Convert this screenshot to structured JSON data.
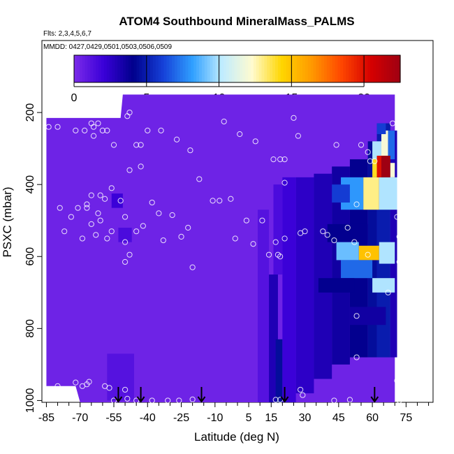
{
  "chart_data": {
    "type": "heatmap",
    "title": "ATOM4 Southbound MineralMass_PALMS",
    "subtitle_flights": "Flts: 2,3,4,5,6,7",
    "subtitle_dates": "MMDD: 0427,0429,0501,0503,0506,0509",
    "xlabel": "Latitude (deg N)",
    "ylabel": "PSXC (mbar)",
    "xlim": [
      -87,
      87
    ],
    "ylim": [
      1005,
      0
    ],
    "x_ticks": [
      -85,
      -70,
      -55,
      -40,
      -25,
      -10,
      5,
      15,
      30,
      45,
      60,
      75
    ],
    "x_tick_labels": [
      "-85",
      "-70",
      "-55",
      "-40",
      "-25",
      "-10",
      "5",
      "15",
      "30",
      "45",
      "60",
      "75"
    ],
    "x_minor_ticks": [
      -80,
      -75,
      -65,
      -60,
      -50,
      -45,
      -35,
      -30,
      -20,
      -15,
      -5,
      0,
      10,
      20,
      25,
      35,
      40,
      50,
      55,
      65,
      70,
      80,
      85
    ],
    "y_ticks": [
      200,
      400,
      600,
      800,
      1000
    ],
    "y_tick_labels": [
      "200",
      "400",
      "600",
      "800",
      "1000"
    ],
    "colorbar": {
      "min": 0,
      "max": 22.5,
      "ticks": [
        0,
        5,
        10,
        15,
        20
      ],
      "tick_labels": [
        "0",
        "5",
        "10",
        "15",
        "20"
      ],
      "colors": [
        "#7b2be9",
        "#3a00d8",
        "#00008c",
        "#1540d8",
        "#30a0ff",
        "#c0ecff",
        "#fffbd0",
        "#ffd600",
        "#ff9a00",
        "#ff4800",
        "#d60000",
        "#9e0012"
      ]
    },
    "background_value": 0.4,
    "coverage": [
      {
        "lat": -85,
        "ptop": 215,
        "pbot": 960
      },
      {
        "lat": -78,
        "ptop": 215,
        "pbot": 960
      },
      {
        "lat": -72,
        "ptop": 215,
        "pbot": 960
      },
      {
        "lat": -70,
        "ptop": 215,
        "pbot": 1005
      },
      {
        "lat": -52,
        "ptop": 215,
        "pbot": 1005
      },
      {
        "lat": -51,
        "ptop": 150,
        "pbot": 1005
      },
      {
        "lat": 70,
        "ptop": 150,
        "pbot": 1005
      }
    ],
    "cells": [
      {
        "lat0": -56,
        "lat1": -51,
        "p0": 425,
        "p1": 465,
        "value": 2
      },
      {
        "lat0": -53,
        "lat1": -47,
        "p0": 520,
        "p1": 560,
        "value": 1.5
      },
      {
        "lat0": -58,
        "lat1": -46,
        "p0": 870,
        "p1": 1000,
        "value": 1.2
      },
      {
        "lat0": 9,
        "lat1": 14,
        "p0": 470,
        "p1": 1005,
        "value": 1.2
      },
      {
        "lat0": 14,
        "lat1": 18,
        "p0": 650,
        "p1": 1005,
        "value": 3
      },
      {
        "lat0": 17,
        "lat1": 20,
        "p0": 830,
        "p1": 1005,
        "value": 4.5
      },
      {
        "lat0": 16,
        "lat1": 20,
        "p0": 400,
        "p1": 650,
        "value": 1.5
      },
      {
        "lat0": 20,
        "lat1": 26,
        "p0": 380,
        "p1": 1005,
        "value": 2
      },
      {
        "lat0": 26,
        "lat1": 34,
        "p0": 380,
        "p1": 980,
        "value": 2.5
      },
      {
        "lat0": 34,
        "lat1": 42,
        "p0": 370,
        "p1": 940,
        "value": 3
      },
      {
        "lat0": 42,
        "lat1": 50,
        "p0": 350,
        "p1": 900,
        "value": 3.5
      },
      {
        "lat0": 50,
        "lat1": 58,
        "p0": 330,
        "p1": 880,
        "value": 4
      },
      {
        "lat0": 58,
        "lat1": 62,
        "p0": 280,
        "p1": 880,
        "value": 4.5
      },
      {
        "lat0": 62,
        "lat1": 68,
        "p0": 230,
        "p1": 880,
        "value": 5
      },
      {
        "lat0": 68,
        "lat1": 71,
        "p0": 250,
        "p1": 880,
        "value": 3
      },
      {
        "lat0": 46,
        "lat1": 56,
        "p0": 380,
        "p1": 470,
        "value": 8
      },
      {
        "lat0": 56,
        "lat1": 63,
        "p0": 380,
        "p1": 470,
        "value": 13
      },
      {
        "lat0": 63,
        "lat1": 71,
        "p0": 380,
        "p1": 470,
        "value": 10
      },
      {
        "lat0": 42,
        "lat1": 50,
        "p0": 400,
        "p1": 450,
        "value": 6
      },
      {
        "lat0": 40,
        "lat1": 58,
        "p0": 510,
        "p1": 560,
        "value": 4
      },
      {
        "lat0": 44,
        "lat1": 54,
        "p0": 560,
        "p1": 610,
        "value": 9
      },
      {
        "lat0": 54,
        "lat1": 63,
        "p0": 570,
        "p1": 610,
        "value": 15
      },
      {
        "lat0": 63,
        "lat1": 70,
        "p0": 560,
        "p1": 620,
        "value": 10
      },
      {
        "lat0": 46,
        "lat1": 60,
        "p0": 610,
        "p1": 660,
        "value": 7
      },
      {
        "lat0": 60,
        "lat1": 70,
        "p0": 660,
        "p1": 700,
        "value": 10
      },
      {
        "lat0": 36,
        "lat1": 52,
        "p0": 660,
        "p1": 700,
        "value": 4
      },
      {
        "lat0": 50,
        "lat1": 66,
        "p0": 740,
        "p1": 790,
        "value": 3.5
      },
      {
        "lat0": 64,
        "lat1": 67,
        "p0": 250,
        "p1": 330,
        "value": 12
      },
      {
        "lat0": 67,
        "lat1": 70,
        "p0": 250,
        "p1": 330,
        "value": 7
      },
      {
        "lat0": 60,
        "lat1": 64,
        "p0": 280,
        "p1": 330,
        "value": 10
      },
      {
        "lat0": 62,
        "lat1": 64,
        "p0": 320,
        "p1": 380,
        "value": 20
      },
      {
        "lat0": 64,
        "lat1": 68,
        "p0": 320,
        "p1": 380,
        "value": 23
      },
      {
        "lat0": 60,
        "lat1": 62,
        "p0": 330,
        "p1": 380,
        "value": 14
      },
      {
        "lat0": 68,
        "lat1": 70,
        "p0": 340,
        "p1": 380,
        "value": 12
      },
      {
        "lat0": 62,
        "lat1": 66,
        "p0": 230,
        "p1": 260,
        "value": 6
      }
    ],
    "sample_points": [
      {
        "lat": -84,
        "p": 240
      },
      {
        "lat": -80,
        "p": 240
      },
      {
        "lat": -72,
        "p": 250
      },
      {
        "lat": -68,
        "p": 250
      },
      {
        "lat": -65,
        "p": 230
      },
      {
        "lat": -64,
        "p": 240
      },
      {
        "lat": -64,
        "p": 265
      },
      {
        "lat": -62,
        "p": 230
      },
      {
        "lat": -60,
        "p": 250
      },
      {
        "lat": -58,
        "p": 250
      },
      {
        "lat": -55,
        "p": 290
      },
      {
        "lat": -54,
        "p": 200
      },
      {
        "lat": -49,
        "p": 210
      },
      {
        "lat": -48,
        "p": 200
      },
      {
        "lat": -45,
        "p": 290
      },
      {
        "lat": -43,
        "p": 290
      },
      {
        "lat": -40,
        "p": 250
      },
      {
        "lat": -34,
        "p": 250
      },
      {
        "lat": -27,
        "p": 275
      },
      {
        "lat": -21,
        "p": 305
      },
      {
        "lat": -48,
        "p": 360
      },
      {
        "lat": -43,
        "p": 350
      },
      {
        "lat": -17,
        "p": 385
      },
      {
        "lat": -6,
        "p": 225
      },
      {
        "lat": 1,
        "p": 260
      },
      {
        "lat": 8,
        "p": 280
      },
      {
        "lat": 16,
        "p": 330
      },
      {
        "lat": 19,
        "p": 330
      },
      {
        "lat": 21,
        "p": 330
      },
      {
        "lat": 25,
        "p": 215
      },
      {
        "lat": 27,
        "p": 265
      },
      {
        "lat": 21,
        "p": 395
      },
      {
        "lat": 44,
        "p": 290
      },
      {
        "lat": 55,
        "p": 290
      },
      {
        "lat": 59,
        "p": 335
      },
      {
        "lat": 61,
        "p": 335
      },
      {
        "lat": 58,
        "p": 310
      },
      {
        "lat": 69,
        "p": 230
      },
      {
        "lat": 72,
        "p": 235
      },
      {
        "lat": -79,
        "p": 465
      },
      {
        "lat": -77,
        "p": 530
      },
      {
        "lat": -74,
        "p": 490
      },
      {
        "lat": -71,
        "p": 465
      },
      {
        "lat": -69,
        "p": 550
      },
      {
        "lat": -67,
        "p": 465
      },
      {
        "lat": -67,
        "p": 455
      },
      {
        "lat": -65,
        "p": 510
      },
      {
        "lat": -65,
        "p": 430
      },
      {
        "lat": -63,
        "p": 540
      },
      {
        "lat": -62,
        "p": 480
      },
      {
        "lat": -61,
        "p": 430
      },
      {
        "lat": -61,
        "p": 500
      },
      {
        "lat": -59,
        "p": 440
      },
      {
        "lat": -58,
        "p": 550
      },
      {
        "lat": -56,
        "p": 530
      },
      {
        "lat": -56,
        "p": 410
      },
      {
        "lat": -52,
        "p": 445
      },
      {
        "lat": -50,
        "p": 490
      },
      {
        "lat": -50,
        "p": 560
      },
      {
        "lat": -50,
        "p": 615
      },
      {
        "lat": -48,
        "p": 595
      },
      {
        "lat": -45,
        "p": 530
      },
      {
        "lat": -42,
        "p": 515
      },
      {
        "lat": -38,
        "p": 450
      },
      {
        "lat": -35,
        "p": 480
      },
      {
        "lat": -33,
        "p": 555
      },
      {
        "lat": -29,
        "p": 485
      },
      {
        "lat": -25,
        "p": 545
      },
      {
        "lat": -22,
        "p": 520
      },
      {
        "lat": -20,
        "p": 630
      },
      {
        "lat": -11,
        "p": 445
      },
      {
        "lat": -8,
        "p": 445
      },
      {
        "lat": -3,
        "p": 440
      },
      {
        "lat": -1,
        "p": 550
      },
      {
        "lat": 4,
        "p": 500
      },
      {
        "lat": 7,
        "p": 565
      },
      {
        "lat": 11,
        "p": 500
      },
      {
        "lat": 14,
        "p": 595
      },
      {
        "lat": 17,
        "p": 560
      },
      {
        "lat": 18,
        "p": 595
      },
      {
        "lat": 19,
        "p": 600
      },
      {
        "lat": 21,
        "p": 550
      },
      {
        "lat": 28,
        "p": 535
      },
      {
        "lat": 30,
        "p": 530
      },
      {
        "lat": 38,
        "p": 530
      },
      {
        "lat": 40,
        "p": 540
      },
      {
        "lat": 43,
        "p": 555
      },
      {
        "lat": 49,
        "p": 520
      },
      {
        "lat": 52,
        "p": 560
      },
      {
        "lat": 53,
        "p": 455
      },
      {
        "lat": 58,
        "p": 595
      },
      {
        "lat": 71,
        "p": 490
      },
      {
        "lat": 72,
        "p": 545
      },
      {
        "lat": 72,
        "p": 615
      },
      {
        "lat": 73,
        "p": 690
      },
      {
        "lat": 67,
        "p": 700
      },
      {
        "lat": 53,
        "p": 765
      },
      {
        "lat": 53,
        "p": 880
      },
      {
        "lat": -80,
        "p": 960
      },
      {
        "lat": -72,
        "p": 950
      },
      {
        "lat": -69,
        "p": 960
      },
      {
        "lat": -67,
        "p": 955
      },
      {
        "lat": -66,
        "p": 948
      },
      {
        "lat": -59,
        "p": 960
      },
      {
        "lat": -57,
        "p": 965
      },
      {
        "lat": -55,
        "p": 1000
      },
      {
        "lat": -50,
        "p": 970
      },
      {
        "lat": -49,
        "p": 995
      },
      {
        "lat": -45,
        "p": 1000
      },
      {
        "lat": -38,
        "p": 1000
      },
      {
        "lat": -31,
        "p": 1000
      },
      {
        "lat": -26,
        "p": 1000
      },
      {
        "lat": -20,
        "p": 997
      },
      {
        "lat": 17,
        "p": 998
      },
      {
        "lat": 19,
        "p": 998
      },
      {
        "lat": 28,
        "p": 970
      },
      {
        "lat": 29,
        "p": 985
      },
      {
        "lat": 43,
        "p": 1000
      },
      {
        "lat": 50,
        "p": 998
      },
      {
        "lat": 71,
        "p": 945
      },
      {
        "lat": 72,
        "p": 955
      },
      {
        "lat": 72,
        "p": 1000
      }
    ],
    "arrow_latitudes": [
      -53,
      -43,
      -16,
      21,
      61
    ]
  }
}
